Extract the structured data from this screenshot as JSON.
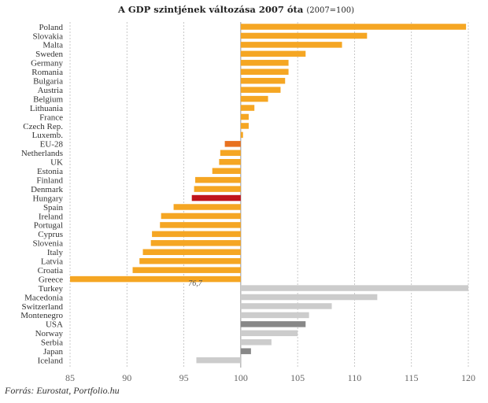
{
  "chart_data": {
    "type": "bar",
    "orientation": "horizontal",
    "title": "A GDP szintjének változása 2007 óta",
    "title_suffix": "(2007=100)",
    "xlim": [
      85,
      120
    ],
    "baseline": 100,
    "xticks": [
      85,
      90,
      95,
      100,
      105,
      110,
      115,
      120
    ],
    "grid": "vertical dashed",
    "source": "Forrás: Eurostat, Portfolio.hu",
    "colors": {
      "eu_orange": "#F5A623",
      "eu28_highlight": "#E8711F",
      "hungary_highlight": "#C0141C",
      "other_grey": "#CCCCCC",
      "usa_japan_grey": "#888888",
      "grid": "#BBBBBB",
      "baseline": "#999999"
    },
    "categories": [
      {
        "name": "Poland",
        "value": 119.8,
        "color": "eu_orange"
      },
      {
        "name": "Slovakia",
        "value": 111.1,
        "color": "eu_orange"
      },
      {
        "name": "Malta",
        "value": 108.9,
        "color": "eu_orange"
      },
      {
        "name": "Sweden",
        "value": 105.7,
        "color": "eu_orange"
      },
      {
        "name": "Germany",
        "value": 104.2,
        "color": "eu_orange"
      },
      {
        "name": "Romania",
        "value": 104.2,
        "color": "eu_orange"
      },
      {
        "name": "Bulgaria",
        "value": 103.9,
        "color": "eu_orange"
      },
      {
        "name": "Austria",
        "value": 103.5,
        "color": "eu_orange"
      },
      {
        "name": "Belgium",
        "value": 102.4,
        "color": "eu_orange"
      },
      {
        "name": "Lithuania",
        "value": 101.2,
        "color": "eu_orange"
      },
      {
        "name": "France",
        "value": 100.7,
        "color": "eu_orange"
      },
      {
        "name": "Czech Rep.",
        "value": 100.7,
        "color": "eu_orange"
      },
      {
        "name": "Luxemb.",
        "value": 100.2,
        "color": "eu_orange"
      },
      {
        "name": "EU-28",
        "value": 98.6,
        "color": "eu28_highlight"
      },
      {
        "name": "Netherlands",
        "value": 98.2,
        "color": "eu_orange"
      },
      {
        "name": "UK",
        "value": 98.1,
        "color": "eu_orange"
      },
      {
        "name": "Estonia",
        "value": 97.5,
        "color": "eu_orange"
      },
      {
        "name": "Finland",
        "value": 96.0,
        "color": "eu_orange"
      },
      {
        "name": "Denmark",
        "value": 95.9,
        "color": "eu_orange"
      },
      {
        "name": "Hungary",
        "value": 95.7,
        "color": "hungary_highlight"
      },
      {
        "name": "Spain",
        "value": 94.1,
        "color": "eu_orange"
      },
      {
        "name": "Ireland",
        "value": 93.0,
        "color": "eu_orange"
      },
      {
        "name": "Portugal",
        "value": 92.9,
        "color": "eu_orange"
      },
      {
        "name": "Cyprus",
        "value": 92.2,
        "color": "eu_orange"
      },
      {
        "name": "Slovenia",
        "value": 92.1,
        "color": "eu_orange"
      },
      {
        "name": "Italy",
        "value": 91.4,
        "color": "eu_orange"
      },
      {
        "name": "Latvia",
        "value": 91.1,
        "color": "eu_orange"
      },
      {
        "name": "Croatia",
        "value": 90.5,
        "color": "eu_orange"
      },
      {
        "name": "Greece",
        "value": 76.7,
        "color": "eu_orange",
        "label": "76,7"
      },
      {
        "name": "Turkey",
        "value": 121.0,
        "color": "other_grey"
      },
      {
        "name": "Macedonia",
        "value": 112.0,
        "color": "other_grey"
      },
      {
        "name": "Switzerland",
        "value": 108.0,
        "color": "other_grey"
      },
      {
        "name": "Montenegro",
        "value": 106.0,
        "color": "other_grey"
      },
      {
        "name": "USA",
        "value": 105.7,
        "color": "usa_japan_grey"
      },
      {
        "name": "Norway",
        "value": 105.0,
        "color": "other_grey"
      },
      {
        "name": "Serbia",
        "value": 102.7,
        "color": "other_grey"
      },
      {
        "name": "Japan",
        "value": 100.9,
        "color": "usa_japan_grey"
      },
      {
        "name": "Iceland",
        "value": 96.1,
        "color": "other_grey"
      }
    ]
  }
}
